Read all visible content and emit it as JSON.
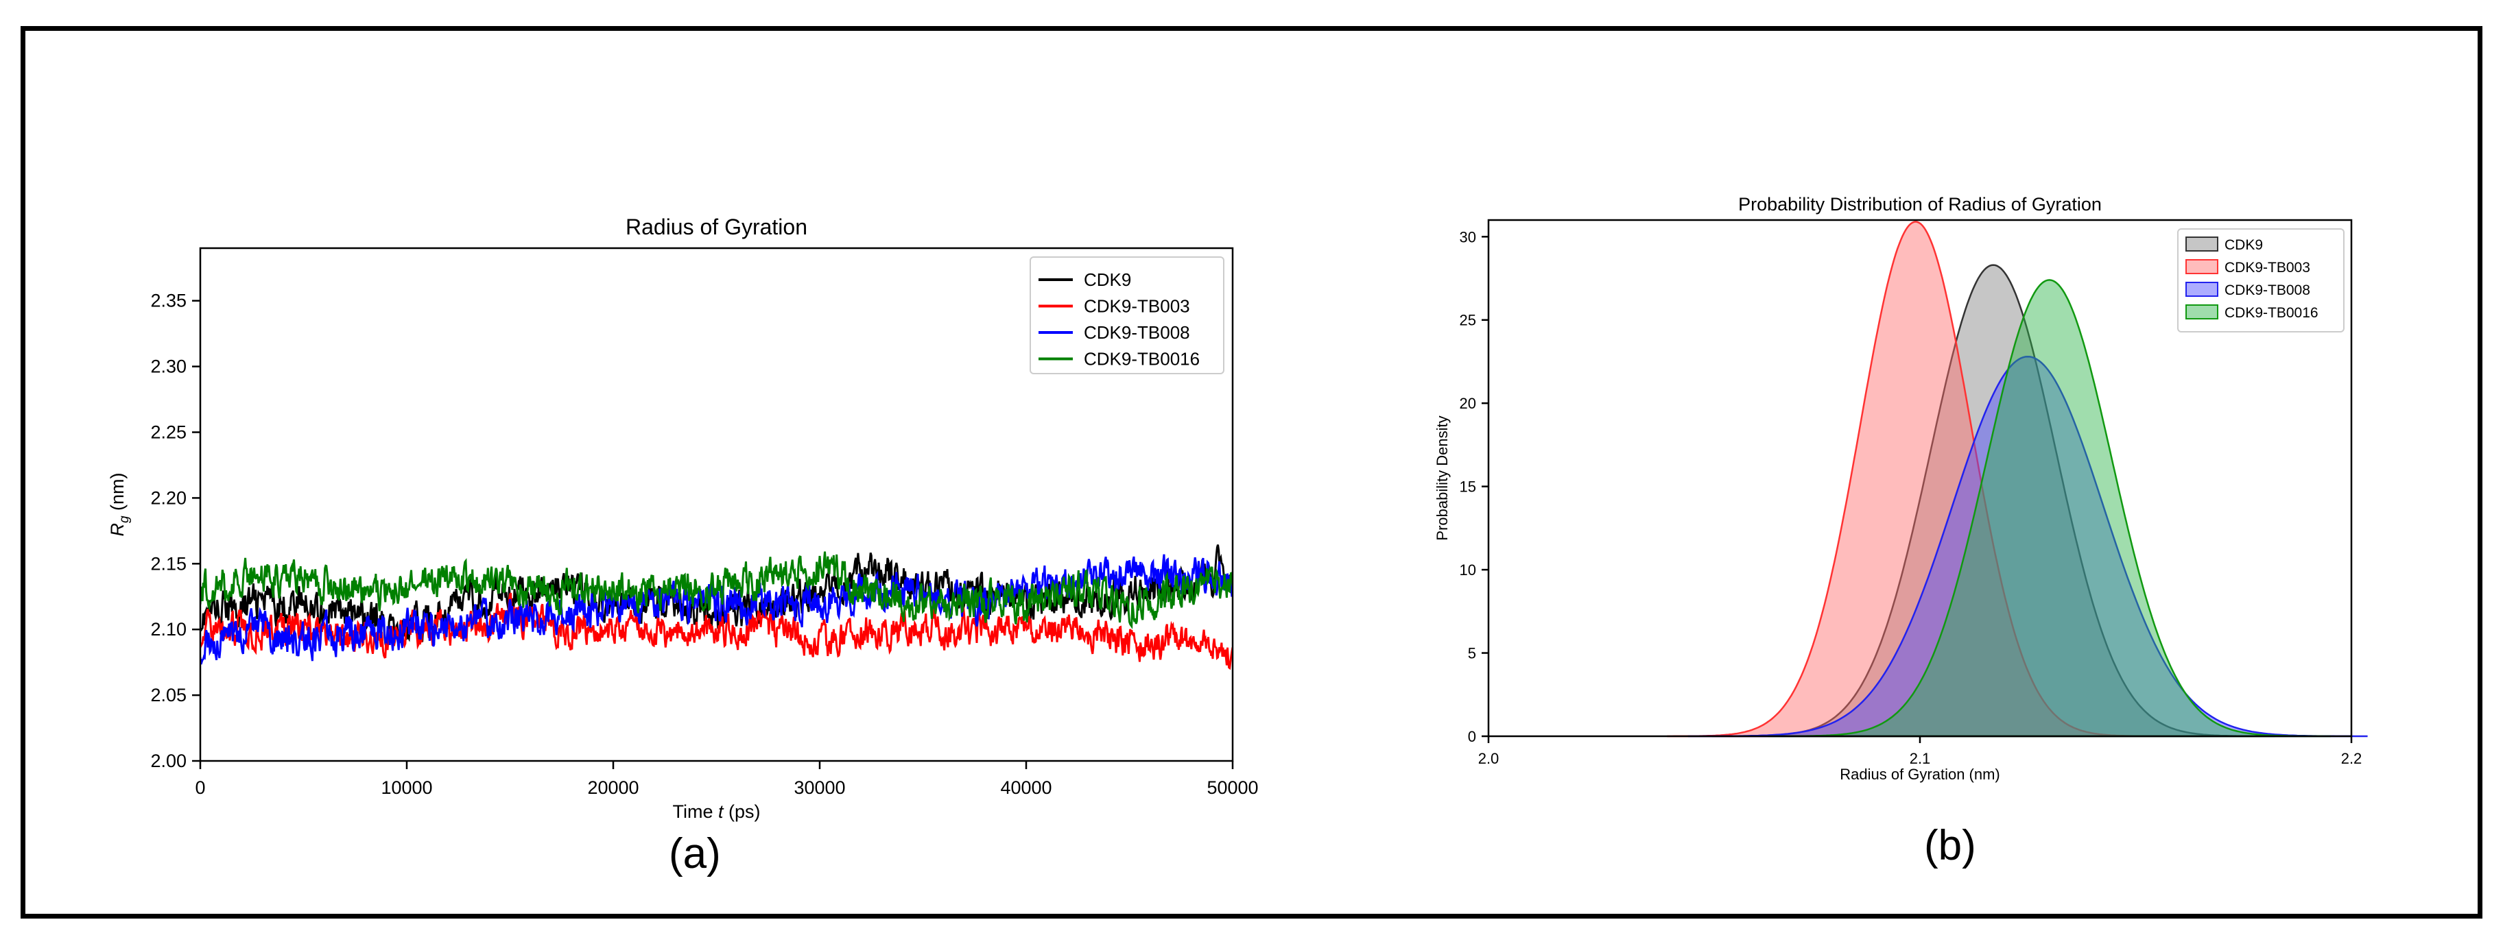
{
  "chart_data": [
    {
      "type": "line",
      "title": "Radius of Gyration",
      "xlabel": "Time t (ps)",
      "ylabel": "Rg (nm)",
      "xlim": [
        0,
        50000
      ],
      "ylim": [
        2.0,
        2.39
      ],
      "xticks": [
        0,
        10000,
        20000,
        30000,
        40000,
        50000
      ],
      "yticks": [
        2.0,
        2.05,
        2.1,
        2.15,
        2.2,
        2.25,
        2.3,
        2.35
      ],
      "grid": false,
      "legend": "top-right",
      "x": [
        0,
        2500,
        5000,
        7500,
        10000,
        12500,
        15000,
        17500,
        20000,
        22500,
        25000,
        27500,
        30000,
        32500,
        35000,
        37500,
        40000,
        42500,
        45000,
        47500,
        50000
      ],
      "series": [
        {
          "name": "CDK9",
          "color": "#000000",
          "values": [
            2.11,
            2.12,
            2.12,
            2.11,
            2.1,
            2.12,
            2.13,
            2.13,
            2.12,
            2.12,
            2.11,
            2.12,
            2.13,
            2.15,
            2.13,
            2.13,
            2.12,
            2.12,
            2.13,
            2.13,
            2.15
          ],
          "noise": 0.011
        },
        {
          "name": "CDK9-TB003",
          "color": "#ff0000",
          "values": [
            2.1,
            2.1,
            2.1,
            2.09,
            2.1,
            2.1,
            2.11,
            2.1,
            2.1,
            2.1,
            2.1,
            2.1,
            2.09,
            2.1,
            2.1,
            2.1,
            2.1,
            2.1,
            2.09,
            2.09,
            2.08
          ],
          "noise": 0.01
        },
        {
          "name": "CDK9-TB008",
          "color": "#0000ff",
          "values": [
            2.09,
            2.1,
            2.09,
            2.1,
            2.1,
            2.1,
            2.11,
            2.11,
            2.12,
            2.12,
            2.12,
            2.12,
            2.12,
            2.13,
            2.13,
            2.12,
            2.13,
            2.14,
            2.14,
            2.14,
            2.14
          ],
          "noise": 0.011
        },
        {
          "name": "CDK9-TB0016",
          "color": "#008000",
          "values": [
            2.13,
            2.14,
            2.14,
            2.13,
            2.13,
            2.14,
            2.13,
            2.13,
            2.13,
            2.13,
            2.13,
            2.14,
            2.15,
            2.13,
            2.12,
            2.12,
            2.12,
            2.13,
            2.12,
            2.13,
            2.14
          ],
          "noise": 0.011
        }
      ]
    },
    {
      "type": "area",
      "title": "Probability Distribution of Radius of Gyration",
      "xlabel": "Radius of Gyration (nm)",
      "ylabel": "Probability Density",
      "xlim": [
        2.0,
        2.2
      ],
      "ylim": [
        0,
        31
      ],
      "xticks": [
        2.0,
        2.1,
        2.2
      ],
      "xtick_labels": [
        "2.0",
        "2.1",
        "2.2"
      ],
      "yticks": [
        0,
        5,
        10,
        15,
        20,
        25,
        30
      ],
      "grid": false,
      "legend": "top-right",
      "series": [
        {
          "name": "CDK9",
          "color": "#808080",
          "mean": 2.117,
          "sd": 0.0145,
          "peak": 28.3
        },
        {
          "name": "CDK9-TB003",
          "color": "#ff6b6b",
          "mean": 2.099,
          "sd": 0.0128,
          "peak": 30.9
        },
        {
          "name": "CDK9-TB008",
          "color": "#4a4aff",
          "mean": 2.125,
          "sd": 0.0175,
          "peak": 22.8
        },
        {
          "name": "CDK9-TB0016",
          "color": "#2db34a",
          "mean": 2.13,
          "sd": 0.0145,
          "peak": 27.4
        }
      ]
    }
  ],
  "captions": {
    "a": "(a)",
    "b": "(b)"
  }
}
